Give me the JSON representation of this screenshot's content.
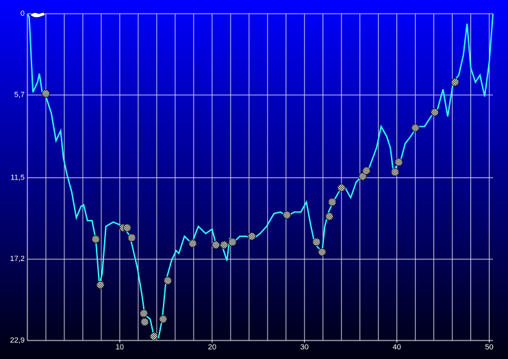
{
  "chart_data": {
    "type": "line",
    "x": [
      0,
      0.2,
      0.6,
      1.1,
      1.3,
      1.6,
      2,
      2.6,
      3.1,
      3.6,
      3.9,
      4.3,
      4.8,
      5.3,
      5.8,
      6.1,
      6.5,
      7,
      7.4,
      7.8,
      8.1,
      8.5,
      9.3,
      10.4,
      11.1,
      11.9,
      12.4,
      12.7,
      13.3,
      13.7,
      14.2,
      14.6,
      15,
      15.6,
      16.1,
      16.4,
      17,
      17.8,
      18.5,
      19.3,
      20,
      20.4,
      21.1,
      21.6,
      21.9,
      22.2,
      23,
      23.7,
      24.4,
      25.2,
      25.9,
      26.7,
      27.4,
      28.1,
      28.9,
      29.6,
      30.2,
      30.7,
      31.1,
      31.9,
      32.2,
      32.6,
      33.1,
      33.7,
      34.4,
      35,
      35.6,
      36.3,
      37,
      37.8,
      38.3,
      38.9,
      39.3,
      39.6,
      40.4,
      40.9,
      41.5,
      42.2,
      43,
      43.7,
      44.4,
      45,
      45.5,
      46.1,
      46.7,
      47.2,
      47.6,
      48,
      48.5,
      49,
      49.5,
      50,
      50.4
    ],
    "series": [
      {
        "color": "#33ffff",
        "values": [
          0,
          0.24,
          5.5,
          4.8,
          4.2,
          5.5,
          5.8,
          7,
          8.9,
          8.2,
          10.1,
          11.3,
          12.5,
          14.3,
          13.5,
          13.4,
          14.5,
          14.5,
          15.8,
          19,
          18.2,
          14.9,
          14.6,
          14.9,
          15.6,
          17.8,
          19.7,
          21.1,
          21.4,
          22.6,
          22.7,
          21.4,
          18.7,
          17.3,
          16.6,
          16.8,
          15.6,
          16.1,
          14.9,
          15.4,
          15.1,
          16.1,
          16.3,
          17.3,
          15.8,
          16.1,
          15.6,
          15.6,
          15.8,
          15.4,
          14.9,
          14,
          13.9,
          14.2,
          13.9,
          13.9,
          13.2,
          14.9,
          16.1,
          16.7,
          14.9,
          13.9,
          13.2,
          12.5,
          12.2,
          12.9,
          11.8,
          11.3,
          10.8,
          9.4,
          7.9,
          8.6,
          9.4,
          11,
          10.3,
          9.1,
          8.6,
          7.9,
          7.9,
          7.2,
          6.7,
          5.3,
          7.2,
          4.8,
          4.3,
          2.9,
          0.7,
          3.8,
          4.8,
          4.3,
          5.8,
          3.4,
          0
        ]
      }
    ],
    "events": {
      "x": [
        2,
        7.4,
        7.9,
        10.4,
        10.8,
        11.3,
        12.6,
        12.7,
        13.7,
        14.7,
        15.2,
        17.9,
        20.4,
        21.3,
        22.2,
        24.3,
        28.1,
        31.3,
        31.9,
        32.7,
        33,
        34,
        36.3,
        36.7,
        39.8,
        40.2,
        42,
        44.1,
        46.3
      ],
      "y": [
        5.6,
        15.8,
        19,
        15,
        15,
        15.7,
        21,
        21.6,
        22.6,
        21.4,
        18.7,
        16.1,
        16.2,
        16.2,
        16,
        15.6,
        14.1,
        16,
        16.7,
        14.2,
        13.2,
        12.2,
        11.4,
        11,
        11.1,
        10.4,
        8,
        6.9,
        4.8
      ]
    },
    "xlim": [
      0,
      50.4
    ],
    "xticks": [
      10,
      20,
      30,
      40,
      50
    ],
    "xgrid_step": 2,
    "ylim": [
      0,
      22.9
    ],
    "y_inverted": true,
    "yticks": [
      0,
      {
        "value": 5.7,
        "label": "5,7"
      },
      {
        "value": 11.5,
        "label": "11,5"
      },
      {
        "value": 17.2,
        "label": "17,2"
      },
      {
        "value": 22.9,
        "label": "22,9"
      }
    ],
    "grid": true
  }
}
